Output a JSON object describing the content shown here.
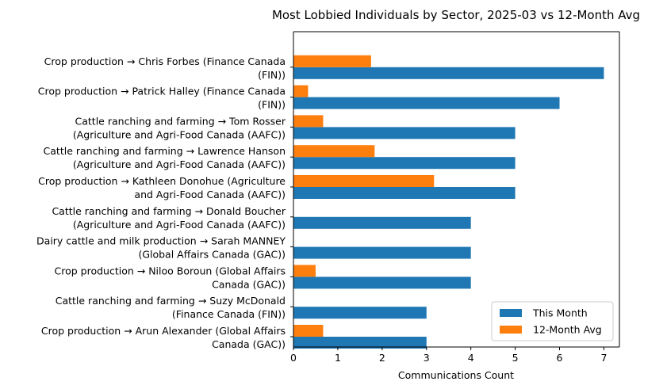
{
  "chart_data": {
    "type": "bar",
    "orientation": "horizontal",
    "title": "Most Lobbied Individuals by Sector, 2025-03 vs 12-Month Avg",
    "xlabel": "Communications Count",
    "ylabel": "",
    "xlim": [
      0,
      7.35
    ],
    "xticks": [
      "0",
      "1",
      "2",
      "3",
      "4",
      "5",
      "6",
      "7"
    ],
    "grid": false,
    "legend_position": "bottom-right",
    "categories": [
      [
        "Crop production → Chris Forbes (Finance Canada",
        "(FIN))"
      ],
      [
        "Crop production → Patrick Halley (Finance Canada",
        "(FIN))"
      ],
      [
        "Cattle ranching and farming → Tom Rosser",
        "(Agriculture and Agri-Food Canada (AAFC))"
      ],
      [
        "Cattle ranching and farming → Lawrence Hanson",
        "(Agriculture and Agri-Food Canada (AAFC))"
      ],
      [
        "Crop production → Kathleen Donohue (Agriculture",
        "and Agri-Food Canada (AAFC))"
      ],
      [
        "Cattle ranching and farming → Donald Boucher",
        "(Agriculture and Agri-Food Canada (AAFC))"
      ],
      [
        "Dairy cattle and milk production → Sarah MANNEY",
        "(Global Affairs Canada (GAC))"
      ],
      [
        "Crop production → Niloo Boroun (Global Affairs",
        "Canada (GAC))"
      ],
      [
        "Cattle ranching and farming → Suzy McDonald",
        "(Finance Canada (FIN))"
      ],
      [
        "Crop production → Arun Alexander (Global Affairs",
        "Canada (GAC))"
      ]
    ],
    "series": [
      {
        "name": "This Month",
        "color": "#1f77b4",
        "values": [
          7,
          6,
          5,
          5,
          5,
          4,
          4,
          4,
          3,
          3
        ]
      },
      {
        "name": "12-Month Avg",
        "color": "#ff7f0e",
        "values": [
          1.75,
          0.33,
          0.67,
          1.83,
          3.17,
          0,
          0,
          0.5,
          0,
          0.67
        ]
      }
    ]
  }
}
